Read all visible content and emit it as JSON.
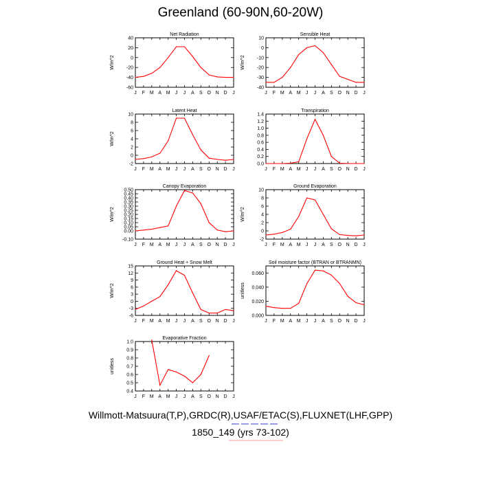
{
  "page": {
    "title": "Greenland (60-90N,60-20W)",
    "credit_line1": "Willmott-Matsuura(T,P),GRDC(R),USAF/ETAC(S),FLUXNET(LHF,GPP)",
    "credit_line2": "1850_149 (yrs 73-102)",
    "line_color": "#ff0000"
  },
  "chart_data": [
    {
      "type": "line",
      "title": "Net Radiation",
      "ylabel": "W/m^2",
      "categories": [
        "J",
        "F",
        "M",
        "A",
        "M",
        "J",
        "J",
        "A",
        "S",
        "O",
        "N",
        "D",
        "J"
      ],
      "values": [
        -40,
        -38,
        -32,
        -20,
        0,
        22,
        22,
        2,
        -20,
        -35,
        -39,
        -40,
        -40
      ],
      "ylim": [
        -60,
        40
      ],
      "yticks": [
        {
          "v": -60,
          "label": "-60"
        },
        {
          "v": -40,
          "label": "-40"
        },
        {
          "v": -20,
          "label": "-20"
        },
        {
          "v": 0,
          "label": "0"
        },
        {
          "v": 20,
          "label": "20"
        },
        {
          "v": 40,
          "label": "40"
        }
      ]
    },
    {
      "type": "line",
      "title": "Sensible Heat",
      "ylabel": "W/m^2",
      "categories": [
        "J",
        "F",
        "M",
        "A",
        "M",
        "J",
        "J",
        "A",
        "S",
        "O",
        "N",
        "D",
        "J"
      ],
      "values": [
        -35,
        -35,
        -30,
        -20,
        -7,
        0,
        2,
        -5,
        -17,
        -29,
        -32,
        -35,
        -35
      ],
      "ylim": [
        -40,
        10
      ],
      "yticks": [
        {
          "v": -40,
          "label": "-40"
        },
        {
          "v": -30,
          "label": "-30"
        },
        {
          "v": -20,
          "label": "-20"
        },
        {
          "v": -10,
          "label": "-10"
        },
        {
          "v": 0,
          "label": "0"
        },
        {
          "v": 10,
          "label": "10"
        }
      ]
    },
    {
      "type": "line",
      "title": "Latent Heat",
      "ylabel": "W/m^2",
      "categories": [
        "J",
        "F",
        "M",
        "A",
        "M",
        "J",
        "J",
        "A",
        "S",
        "O",
        "N",
        "D",
        "J"
      ],
      "values": [
        -1,
        -0.8,
        -0.4,
        0.5,
        3.5,
        9,
        9,
        5,
        1.3,
        -0.7,
        -1,
        -1.2,
        -1
      ],
      "ylim": [
        -2,
        10
      ],
      "yticks": [
        {
          "v": -2,
          "label": "-2"
        },
        {
          "v": 0,
          "label": "0"
        },
        {
          "v": 2,
          "label": "2"
        },
        {
          "v": 4,
          "label": "4"
        },
        {
          "v": 6,
          "label": "6"
        },
        {
          "v": 8,
          "label": "8"
        },
        {
          "v": 10,
          "label": "10"
        }
      ]
    },
    {
      "type": "line",
      "title": "Transpiration",
      "ylabel": "",
      "categories": [
        "J",
        "F",
        "M",
        "A",
        "M",
        "J",
        "J",
        "A",
        "S",
        "O",
        "N",
        "D",
        "J"
      ],
      "values": [
        0,
        0,
        0,
        0.01,
        0.05,
        0.7,
        1.25,
        0.8,
        0.2,
        0.01,
        0,
        0,
        0
      ],
      "ylim": [
        0,
        1.4
      ],
      "yticks": [
        {
          "v": 0,
          "label": "0.0"
        },
        {
          "v": 0.2,
          "label": "0.2"
        },
        {
          "v": 0.4,
          "label": "0.4"
        },
        {
          "v": 0.6,
          "label": "0.6"
        },
        {
          "v": 0.8,
          "label": "0.8"
        },
        {
          "v": 1.0,
          "label": "1.0"
        },
        {
          "v": 1.2,
          "label": "1.2"
        },
        {
          "v": 1.4,
          "label": "1.4"
        }
      ]
    },
    {
      "type": "line",
      "title": "Canopy Evaporation",
      "ylabel": "W/m^2",
      "categories": [
        "J",
        "F",
        "M",
        "A",
        "M",
        "J",
        "J",
        "A",
        "S",
        "O",
        "N",
        "D",
        "J"
      ],
      "values": [
        0,
        0.01,
        0.02,
        0.04,
        0.06,
        0.3,
        0.49,
        0.46,
        0.33,
        0.1,
        0.01,
        -0.01,
        0
      ],
      "ylim": [
        -0.1,
        0.5
      ],
      "yticks": [
        {
          "v": -0.1,
          "label": "-0.10"
        },
        {
          "v": 0,
          "label": "0.00"
        },
        {
          "v": 0.05,
          "label": "0.05"
        },
        {
          "v": 0.1,
          "label": "0.10"
        },
        {
          "v": 0.15,
          "label": "0.15"
        },
        {
          "v": 0.2,
          "label": "0.20"
        },
        {
          "v": 0.25,
          "label": "0.25"
        },
        {
          "v": 0.3,
          "label": "0.30"
        },
        {
          "v": 0.35,
          "label": "0.35"
        },
        {
          "v": 0.4,
          "label": "0.40"
        },
        {
          "v": 0.45,
          "label": "0.45"
        },
        {
          "v": 0.5,
          "label": "0.50"
        }
      ]
    },
    {
      "type": "line",
      "title": "Ground Evaporation",
      "ylabel": "W/m^2",
      "categories": [
        "J",
        "F",
        "M",
        "A",
        "M",
        "J",
        "J",
        "A",
        "S",
        "O",
        "N",
        "D",
        "J"
      ],
      "values": [
        -1,
        -0.8,
        -0.4,
        0.4,
        3.5,
        8,
        7.5,
        4,
        0.5,
        -0.9,
        -1.1,
        -1.2,
        -1
      ],
      "ylim": [
        -2,
        10
      ],
      "yticks": [
        {
          "v": -2,
          "label": "-2"
        },
        {
          "v": 0,
          "label": "0"
        },
        {
          "v": 2,
          "label": "2"
        },
        {
          "v": 4,
          "label": "4"
        },
        {
          "v": 6,
          "label": "6"
        },
        {
          "v": 8,
          "label": "8"
        },
        {
          "v": 10,
          "label": "10"
        }
      ]
    },
    {
      "type": "line",
      "title": "Ground Heat + Snow Melt",
      "ylabel": "W/m^2",
      "categories": [
        "J",
        "F",
        "M",
        "A",
        "M",
        "J",
        "J",
        "A",
        "S",
        "O",
        "N",
        "D",
        "J"
      ],
      "values": [
        -3.5,
        -2,
        0,
        2,
        7,
        13,
        11,
        3.5,
        -3.5,
        -5,
        -5,
        -3.5,
        -4
      ],
      "ylim": [
        -6,
        15
      ],
      "yticks": [
        {
          "v": -6,
          "label": "-6"
        },
        {
          "v": -3,
          "label": "-3"
        },
        {
          "v": 0,
          "label": "0"
        },
        {
          "v": 3,
          "label": "3"
        },
        {
          "v": 6,
          "label": "6"
        },
        {
          "v": 9,
          "label": "9"
        },
        {
          "v": 12,
          "label": "12"
        },
        {
          "v": 15,
          "label": "15"
        }
      ]
    },
    {
      "type": "line",
      "title": "Soil moisture factor (BTRAN or BTRANMN)",
      "ylabel": "unitless",
      "categories": [
        "J",
        "F",
        "M",
        "A",
        "M",
        "J",
        "J",
        "A",
        "S",
        "O",
        "N",
        "D",
        "J"
      ],
      "values": [
        0.013,
        0.011,
        0.01,
        0.01,
        0.017,
        0.045,
        0.064,
        0.063,
        0.057,
        0.045,
        0.027,
        0.018,
        0.015
      ],
      "ylim": [
        0,
        0.07
      ],
      "yticks": [
        {
          "v": 0,
          "label": "0.000"
        },
        {
          "v": 0.02,
          "label": "0.020"
        },
        {
          "v": 0.04,
          "label": "0.040"
        },
        {
          "v": 0.06,
          "label": "0.060"
        }
      ]
    },
    {
      "type": "line",
      "title": "Evaporative Fraction",
      "ylabel": "unitless",
      "categories": [
        "J",
        "F",
        "M",
        "A",
        "M",
        "J",
        "J",
        "A",
        "S",
        "O",
        "N",
        "D",
        "J"
      ],
      "values": [
        null,
        null,
        1.02,
        0.47,
        0.66,
        0.63,
        0.58,
        0.5,
        0.6,
        0.83,
        null,
        null,
        null
      ],
      "ylim": [
        0.4,
        1.0
      ],
      "yticks": [
        {
          "v": 0.4,
          "label": "0.4"
        },
        {
          "v": 0.5,
          "label": "0.5"
        },
        {
          "v": 0.6,
          "label": "0.6"
        },
        {
          "v": 0.7,
          "label": "0.7"
        },
        {
          "v": 0.8,
          "label": "0.8"
        },
        {
          "v": 0.9,
          "label": "0.9"
        },
        {
          "v": 1.0,
          "label": "1.0"
        }
      ]
    }
  ]
}
